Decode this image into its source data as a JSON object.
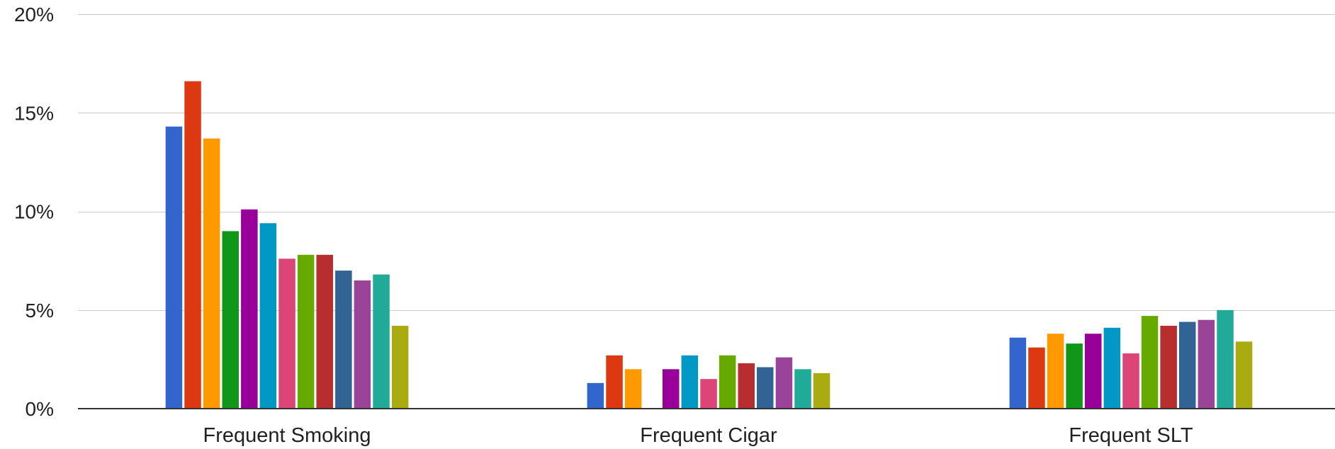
{
  "chart_data": {
    "type": "bar",
    "categories": [
      "Frequent Smoking",
      "Frequent Cigar",
      "Frequent SLT"
    ],
    "ylim": [
      0,
      20
    ],
    "yticks": [
      0,
      5,
      10,
      15,
      20
    ],
    "ytick_labels": [
      "0%",
      "5%",
      "10%",
      "15%",
      "20%"
    ],
    "grid": true,
    "legend": "none",
    "series": [
      {
        "color": "#3366cc",
        "values": [
          14.3,
          1.3,
          3.6
        ]
      },
      {
        "color": "#dc3912",
        "values": [
          16.6,
          2.7,
          3.1
        ]
      },
      {
        "color": "#ff9900",
        "values": [
          13.7,
          2.0,
          3.8
        ]
      },
      {
        "color": "#109618",
        "values": [
          9.0,
          0.0,
          3.3
        ]
      },
      {
        "color": "#990099",
        "values": [
          10.1,
          2.0,
          3.8
        ]
      },
      {
        "color": "#0099c6",
        "values": [
          9.4,
          2.7,
          4.1
        ]
      },
      {
        "color": "#dd4477",
        "values": [
          7.6,
          1.5,
          2.8
        ]
      },
      {
        "color": "#66aa00",
        "values": [
          7.8,
          2.7,
          4.7
        ]
      },
      {
        "color": "#b82e2e",
        "values": [
          7.8,
          2.3,
          4.2
        ]
      },
      {
        "color": "#316395",
        "values": [
          7.0,
          2.1,
          4.4
        ]
      },
      {
        "color": "#994499",
        "values": [
          6.5,
          2.6,
          4.5
        ]
      },
      {
        "color": "#22aa99",
        "values": [
          6.8,
          2.0,
          5.0
        ]
      },
      {
        "color": "#aaaa11",
        "values": [
          4.2,
          1.8,
          3.4
        ]
      }
    ]
  }
}
